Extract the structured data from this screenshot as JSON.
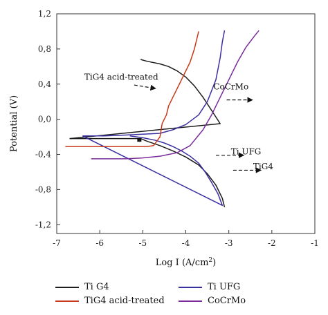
{
  "chart_data": {
    "type": "line",
    "xlabel": "Log I (A/cm",
    "xlabel_sup": "2",
    "xlabel_end": ")",
    "ylabel": "Potential (V)",
    "xlim": [
      -7,
      -1
    ],
    "ylim": [
      -1.3,
      1.2
    ],
    "x_ticks": [
      -7,
      -6,
      -5,
      -4,
      -3,
      -2,
      -1
    ],
    "x_tick_labels": [
      "-7",
      "-6",
      "-5",
      "-4",
      "-3",
      "-2",
      "-1"
    ],
    "y_ticks": [
      1.2,
      0.8,
      0.4,
      0.0,
      -0.4,
      -0.8,
      -1.2
    ],
    "y_tick_labels": [
      "1,2",
      "0,8",
      "0,4",
      "0,0",
      "-0,4",
      "-0,8",
      "-1,2"
    ],
    "grid": false,
    "legend_position": "bottom",
    "series": [
      {
        "name": "Ti G4",
        "color": "#1c1c1c",
        "x": [
          -6.7,
          -6.3,
          -5.9,
          -5.5,
          -5.2,
          -5.05,
          -4.9,
          -4.6,
          -4.3,
          -4.0,
          -3.7,
          -3.5,
          -3.3,
          -3.15,
          -3.1,
          -3.2,
          -3.4,
          -3.6,
          -3.8,
          -4.0,
          -4.2,
          -4.4,
          -4.6,
          -4.9,
          -5.05
        ],
        "y": [
          -0.22,
          -0.22,
          -0.22,
          -0.22,
          -0.22,
          -0.22,
          -0.25,
          -0.3,
          -0.36,
          -0.43,
          -0.52,
          -0.62,
          -0.75,
          -0.9,
          -1.0,
          -0.05,
          0.1,
          0.25,
          0.38,
          0.48,
          0.55,
          0.6,
          0.63,
          0.66,
          0.68
        ]
      },
      {
        "name": "Ti UFG",
        "color": "#3a2fa0",
        "x": [
          -6.4,
          -5.9,
          -5.4,
          -5.0,
          -4.6,
          -4.3,
          -4.0,
          -3.7,
          -3.5,
          -3.3,
          -3.2,
          -3.15,
          -3.1,
          -3.15,
          -3.25,
          -3.4,
          -3.55,
          -3.7,
          -3.9,
          -4.1,
          -4.3,
          -4.5,
          -4.7,
          -5.0,
          -5.3
        ],
        "y": [
          -0.19,
          -0.19,
          -0.18,
          -0.17,
          -0.16,
          -0.12,
          -0.06,
          0.05,
          0.2,
          0.45,
          0.7,
          0.88,
          1.01,
          -0.98,
          -0.85,
          -0.72,
          -0.6,
          -0.5,
          -0.42,
          -0.36,
          -0.31,
          -0.27,
          -0.24,
          -0.21,
          -0.19
        ]
      },
      {
        "name": "TiG4 acid-treated",
        "color": "#c8391a",
        "x": [
          -6.8,
          -6.4,
          -6.0,
          -5.6,
          -5.3,
          -5.1,
          -4.9,
          -4.75,
          -4.6,
          -4.55,
          -4.5,
          -4.45,
          -4.4,
          -4.3,
          -4.2,
          -4.1,
          -4.0,
          -3.9,
          -3.8,
          -3.75,
          -3.7
        ],
        "y": [
          -0.31,
          -0.31,
          -0.31,
          -0.31,
          -0.31,
          -0.31,
          -0.31,
          -0.3,
          -0.2,
          -0.05,
          0.0,
          0.05,
          0.15,
          0.25,
          0.35,
          0.45,
          0.55,
          0.65,
          0.8,
          0.9,
          1.0
        ]
      },
      {
        "name": "CoCrMo",
        "color": "#7a2a9a",
        "x": [
          -6.2,
          -5.8,
          -5.4,
          -5.0,
          -4.6,
          -4.2,
          -3.9,
          -3.6,
          -3.4,
          -3.2,
          -3.0,
          -2.8,
          -2.6,
          -2.4,
          -2.3
        ],
        "y": [
          -0.45,
          -0.45,
          -0.45,
          -0.44,
          -0.42,
          -0.38,
          -0.3,
          -0.12,
          0.05,
          0.25,
          0.45,
          0.65,
          0.82,
          0.95,
          1.01
        ]
      }
    ],
    "annotations": [
      {
        "text": "TiG4 acid-treated",
        "x": -5.5,
        "y": 0.45,
        "arrow_to": [
          -4.7,
          0.35
        ]
      },
      {
        "text": "CoCrMo",
        "x": -2.95,
        "y": 0.34,
        "arrow_from": [
          -3.05,
          0.22
        ],
        "arrow_to": [
          -2.45,
          0.22
        ]
      },
      {
        "text": "Ti UFG",
        "x": -2.6,
        "y": -0.4,
        "arrow_from": [
          -3.3,
          -0.41
        ],
        "arrow_to": [
          -2.65,
          -0.41
        ]
      },
      {
        "text": "TiG4",
        "x": -2.2,
        "y": -0.57,
        "arrow_from": [
          -2.9,
          -0.58
        ],
        "arrow_to": [
          -2.25,
          -0.58
        ]
      }
    ]
  },
  "legend": {
    "items": [
      {
        "label": "Ti G4",
        "color": "#1c1c1c"
      },
      {
        "label": "Ti UFG",
        "color": "#3a2fa0"
      },
      {
        "label": "TiG4 acid-treated",
        "color": "#c8391a"
      },
      {
        "label": "CoCrMo",
        "color": "#7a2a9a"
      }
    ]
  }
}
